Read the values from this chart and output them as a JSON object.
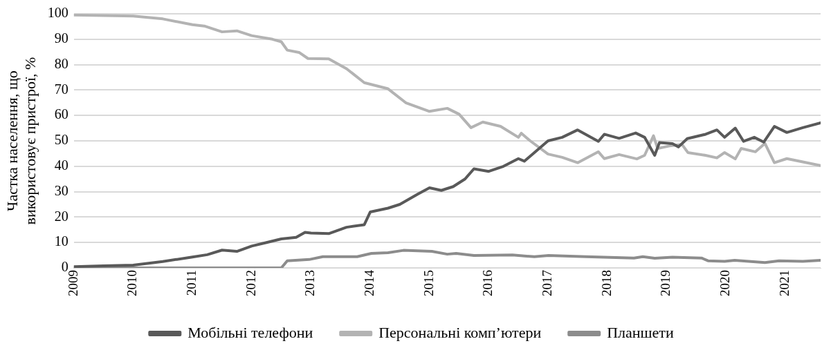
{
  "chart_data": {
    "type": "line",
    "ylabel": "Частка населення, що використовує пристрої, %",
    "xlim": [
      2009,
      2021.6
    ],
    "xticks": [
      2009,
      2010,
      2011,
      2012,
      2013,
      2014,
      2015,
      2016,
      2017,
      2018,
      2019,
      2020,
      2021
    ],
    "ylim": [
      0,
      100
    ],
    "yticks": [
      0,
      10,
      20,
      30,
      40,
      50,
      60,
      70,
      80,
      90,
      100
    ],
    "grid": "y",
    "legend": "bottom",
    "marker": "none",
    "line_style": "solid",
    "series": [
      {
        "name": "Мобільні телефони",
        "color": "#595959",
        "x": [
          2009,
          2009.5,
          2010,
          2010.5,
          2011,
          2011.25,
          2011.5,
          2011.75,
          2012,
          2012.25,
          2012.5,
          2012.75,
          2012.9,
          2013,
          2013.3,
          2013.6,
          2013.9,
          2014,
          2014.3,
          2014.5,
          2014.8,
          2015,
          2015.2,
          2015.4,
          2015.6,
          2015.75,
          2016,
          2016.25,
          2016.5,
          2016.6,
          2016.75,
          2017,
          2017.24,
          2017.5,
          2017.85,
          2017.95,
          2018.2,
          2018.48,
          2018.63,
          2018.8,
          2018.88,
          2019.1,
          2019.2,
          2019.35,
          2019.66,
          2019.85,
          2019.98,
          2020.16,
          2020.3,
          2020.48,
          2020.64,
          2020.82,
          2021.03,
          2021.3,
          2021.6
        ],
        "values": [
          0.5,
          0.8,
          1.1,
          2.5,
          4.3,
          5.2,
          7,
          6.5,
          8.6,
          10,
          11.4,
          12,
          14,
          13.7,
          13.5,
          16,
          17,
          22,
          23.5,
          25,
          29,
          31.5,
          30.5,
          32,
          35,
          39,
          38,
          40,
          43,
          42,
          45,
          50,
          51.4,
          54.3,
          49.8,
          52.6,
          51,
          53.1,
          51.4,
          44.3,
          49.3,
          48.9,
          47.6,
          50.9,
          52.6,
          54.3,
          51.4,
          55,
          49.8,
          51.4,
          49.5,
          55.7,
          53.3,
          55.2,
          57.1
        ]
      },
      {
        "name": "Персональні комп’ютери",
        "color": "#b3b3b3",
        "x": [
          2009,
          2010,
          2010.5,
          2011,
          2011.2,
          2011.5,
          2011.75,
          2012,
          2012.35,
          2012.5,
          2012.6,
          2012.8,
          2012.95,
          2013.3,
          2013.6,
          2013.9,
          2014.3,
          2014.6,
          2015,
          2015.3,
          2015.5,
          2015.7,
          2015.9,
          2016.2,
          2016.5,
          2016.55,
          2016.7,
          2017,
          2017.24,
          2017.5,
          2017.85,
          2017.95,
          2018.2,
          2018.5,
          2018.63,
          2018.78,
          2018.85,
          2019.05,
          2019.26,
          2019.36,
          2019.66,
          2019.85,
          2019.98,
          2020.16,
          2020.26,
          2020.5,
          2020.66,
          2020.82,
          2021.03,
          2021.3,
          2021.6
        ],
        "values": [
          99.5,
          99.1,
          98,
          95.7,
          95.2,
          92.9,
          93.3,
          91.4,
          90,
          89,
          85.7,
          84.8,
          82.4,
          82.3,
          78.4,
          72.9,
          70.5,
          65,
          61.6,
          62.8,
          60.5,
          55.2,
          57.4,
          55.7,
          51.4,
          53,
          50,
          44.8,
          43.5,
          41.4,
          45.7,
          43,
          44.6,
          42.9,
          44.3,
          52,
          47,
          48,
          48.6,
          45.4,
          44.3,
          43.3,
          45.4,
          42.9,
          47,
          45.7,
          49,
          41.4,
          43,
          41.7,
          40.3
        ]
      },
      {
        "name": "Планшети",
        "color": "#8c8c8c",
        "x": [
          2009,
          2012.5,
          2012.6,
          2012.97,
          2013.2,
          2013.78,
          2014.02,
          2014.3,
          2014.56,
          2015.04,
          2015.3,
          2015.45,
          2015.75,
          2016.4,
          2016.77,
          2017.01,
          2017.64,
          2018.45,
          2018.6,
          2018.8,
          2019.1,
          2019.59,
          2019.7,
          2019.98,
          2020.15,
          2020.66,
          2020.9,
          2021.3,
          2021.6
        ],
        "values": [
          0,
          0,
          2.8,
          3.3,
          4.4,
          4.4,
          5.7,
          6,
          6.9,
          6.5,
          5.4,
          5.7,
          4.9,
          5.1,
          4.4,
          4.9,
          4.4,
          3.9,
          4.4,
          3.8,
          4.2,
          3.9,
          2.8,
          2.6,
          3,
          2.1,
          2.8,
          2.6,
          3
        ]
      }
    ]
  }
}
